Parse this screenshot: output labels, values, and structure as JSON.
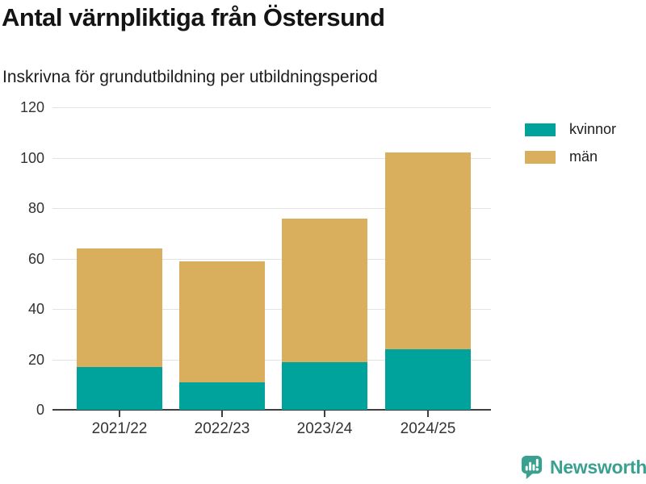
{
  "title": "Antal värnpliktiga från Östersund",
  "subtitle": "Inskrivna för grundutbildning per utbildningsperiod",
  "legend": {
    "items": [
      {
        "label": "kvinnor",
        "color": "#00a39b"
      },
      {
        "label": "män",
        "color": "#d9ae5c"
      }
    ]
  },
  "branding": {
    "name": "Newsworthy",
    "color": "#3aa08f",
    "icon": "newsworthy-speech-bubble-chart-icon"
  },
  "colors": {
    "kvinnor": "#00a39b",
    "man": "#d9ae5c",
    "gridline": "#e3e3e3",
    "axis": "#3f3f3f",
    "text": "#333333",
    "title_text": "#141414"
  },
  "chart_data": {
    "type": "bar",
    "stacked": true,
    "title": "Antal värnpliktiga från Östersund",
    "subtitle": "Inskrivna för grundutbildning per utbildningsperiod",
    "categories": [
      "2021/22",
      "2022/23",
      "2023/24",
      "2024/25"
    ],
    "series": [
      {
        "name": "kvinnor",
        "color": "#00a39b",
        "values": [
          17,
          11,
          19,
          24
        ]
      },
      {
        "name": "män",
        "color": "#d9ae5c",
        "values": [
          47,
          48,
          57,
          78
        ]
      }
    ],
    "totals": [
      64,
      59,
      76,
      102
    ],
    "xlabel": "",
    "ylabel": "",
    "ylim": [
      0,
      120
    ],
    "yticks": [
      0,
      20,
      40,
      60,
      80,
      100,
      120
    ],
    "grid": true,
    "legend_position": "right"
  }
}
